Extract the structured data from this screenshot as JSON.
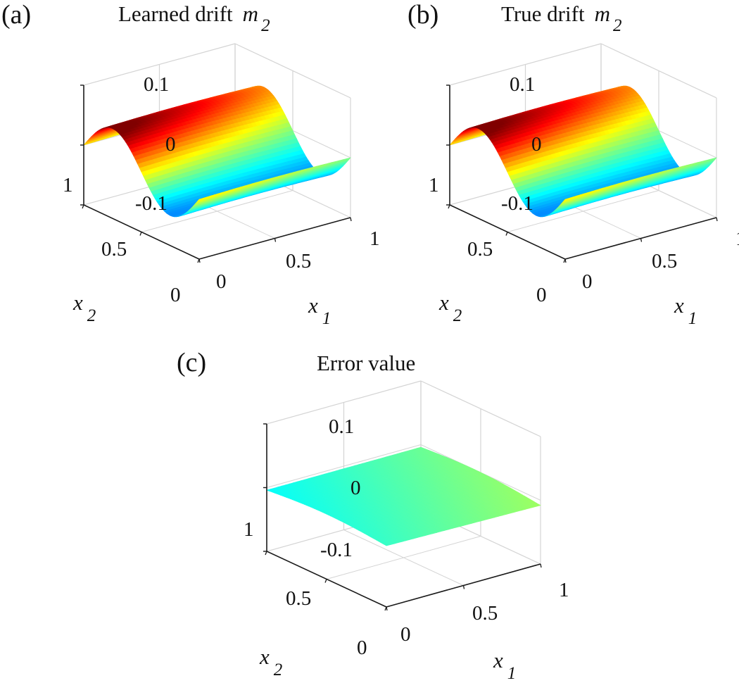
{
  "figure": {
    "panels": [
      {
        "id": "a",
        "letter": "(a)",
        "title": "Learned drift",
        "title_symbol": "m",
        "title_subscript": "2"
      },
      {
        "id": "b",
        "letter": "(b)",
        "title": "True drift",
        "title_symbol": "m",
        "title_subscript": "2"
      },
      {
        "id": "c",
        "letter": "(c)",
        "title": "Error value",
        "title_symbol": "",
        "title_subscript": ""
      }
    ],
    "axes": {
      "z_ticks": [
        "0.1",
        "0",
        "-0.1"
      ],
      "x2_ticks": [
        "1",
        "0.5",
        "0"
      ],
      "x1_ticks": [
        "0",
        "0.5",
        "1"
      ],
      "x1_label": "x",
      "x1_sub": "1",
      "x2_label": "x",
      "x2_sub": "2"
    },
    "colors": {
      "box_line": "#d4d4d4",
      "axis_line": "#1a1a1a",
      "colormap": "jet"
    }
  },
  "chart_data": [
    {
      "type": "surface",
      "title": "(a) Learned drift m_2",
      "xlabel": "x_1",
      "ylabel": "x_2",
      "zlabel": "",
      "xlim": [
        0,
        1
      ],
      "ylim": [
        0,
        1
      ],
      "zlim": [
        -0.1,
        0.1
      ],
      "x_ticks": [
        0,
        0.5,
        1
      ],
      "y_ticks": [
        0,
        0.5,
        1
      ],
      "z_ticks": [
        -0.1,
        0,
        0.1
      ],
      "grid": true,
      "colormap": "jet",
      "description": "Sinusoidal ridge along x2, nearly constant along x1: z ≈ -0.05*sin(2*pi*x2); peak ≈ 0.05 near x2≈0.75, trough ≈ -0.05 near x2≈0.25, zero at x2=0 and x2=1",
      "samples": {
        "x2": [
          0,
          0.125,
          0.25,
          0.375,
          0.5,
          0.625,
          0.75,
          0.875,
          1
        ],
        "z": [
          0,
          -0.035,
          -0.05,
          -0.035,
          0,
          0.035,
          0.05,
          0.035,
          0
        ]
      }
    },
    {
      "type": "surface",
      "title": "(b) True drift m_2",
      "xlabel": "x_1",
      "ylabel": "x_2",
      "zlabel": "",
      "xlim": [
        0,
        1
      ],
      "ylim": [
        0,
        1
      ],
      "zlim": [
        -0.1,
        0.1
      ],
      "x_ticks": [
        0,
        0.5,
        1
      ],
      "y_ticks": [
        0,
        0.5,
        1
      ],
      "z_ticks": [
        -0.1,
        0,
        0.1
      ],
      "grid": true,
      "colormap": "jet",
      "description": "Same ridge as learned drift: z ≈ -0.05*sin(2*pi*x2)",
      "samples": {
        "x2": [
          0,
          0.125,
          0.25,
          0.375,
          0.5,
          0.625,
          0.75,
          0.875,
          1
        ],
        "z": [
          0,
          -0.035,
          -0.05,
          -0.035,
          0,
          0.035,
          0.05,
          0.035,
          0
        ]
      }
    },
    {
      "type": "surface",
      "title": "(c) Error value",
      "xlabel": "x_1",
      "ylabel": "x_2",
      "zlabel": "",
      "xlim": [
        0,
        1
      ],
      "ylim": [
        0,
        1
      ],
      "zlim": [
        -0.1,
        0.1
      ],
      "x_ticks": [
        0,
        0.5,
        1
      ],
      "y_ticks": [
        0,
        0.5,
        1
      ],
      "z_ticks": [
        -0.1,
        0,
        0.1
      ],
      "grid": true,
      "colormap": "jet",
      "description": "Nearly flat surface near zero (|error| < ~0.01)",
      "samples": {
        "x2": [
          0,
          0.5,
          1
        ],
        "z": [
          -0.003,
          0.002,
          -0.005
        ]
      }
    }
  ]
}
